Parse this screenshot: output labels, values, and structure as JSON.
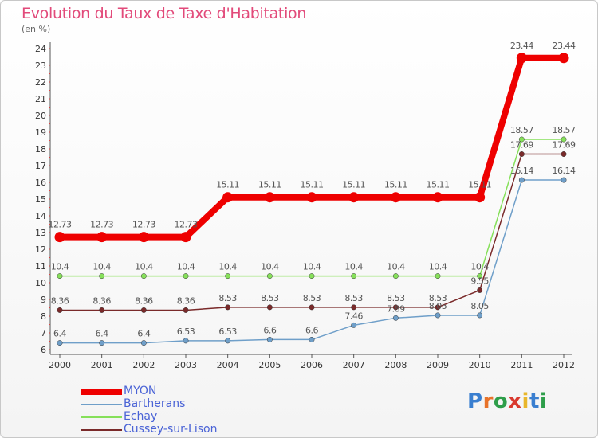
{
  "title": "Evolution du Taux de Taxe d'Habitation",
  "unit_label": "(en %)",
  "logo": {
    "text": "Proxiti",
    "letters": [
      "P",
      "r",
      "o",
      "x",
      "i",
      "t",
      "i"
    ],
    "colors": [
      "#3a7fd0",
      "#e8732a",
      "#2e9e4a",
      "#d93a2f",
      "#e8b62a",
      "#3a7fd0",
      "#2e9e4a"
    ]
  },
  "legend": [
    {
      "label": "MYON",
      "color": "#ee0000"
    },
    {
      "label": "Bartherans",
      "color": "#6f9fc9"
    },
    {
      "label": "Echay",
      "color": "#86e05a"
    },
    {
      "label": "Cussey-sur-Lison",
      "color": "#7a2a2a"
    }
  ],
  "chart_data": {
    "type": "line",
    "title": "Evolution du Taux de Taxe d'Habitation",
    "ylabel": "(en %)",
    "xlabel": "",
    "ylim": [
      6,
      24
    ],
    "grid": false,
    "x": [
      "2000",
      "2001",
      "2002",
      "2003",
      "2004",
      "2005",
      "2006",
      "2007",
      "2008",
      "2009",
      "2010",
      "2011",
      "2012"
    ],
    "yticks": [
      "6",
      "7",
      "8",
      "9",
      "10",
      "11",
      "12",
      "13",
      "14",
      "15",
      "16",
      "17",
      "18",
      "19",
      "20",
      "21",
      "22",
      "23",
      "24"
    ],
    "series": [
      {
        "name": "MYON",
        "color": "#ee0000",
        "values": [
          12.73,
          12.73,
          12.73,
          12.73,
          15.11,
          15.11,
          15.11,
          15.11,
          15.11,
          15.11,
          15.11,
          23.44,
          23.44
        ],
        "labels": [
          "12.73",
          "12.73",
          "12.73",
          "12.73",
          "15.11",
          "15.11",
          "15.11",
          "15.11",
          "15.11",
          "15.11",
          "15.11",
          "23.44",
          "23.44"
        ]
      },
      {
        "name": "Bartherans",
        "color": "#6f9fc9",
        "values": [
          6.4,
          6.4,
          6.4,
          6.53,
          6.53,
          6.6,
          6.6,
          7.46,
          7.89,
          8.05,
          8.05,
          16.14,
          16.14
        ],
        "labels": [
          "6.4",
          "6.4",
          "6.4",
          "6.53",
          "6.53",
          "6.6",
          "6.6",
          "7.46",
          "7.89",
          "8.05",
          "8.05",
          "16.14",
          "16.14"
        ]
      },
      {
        "name": "Echay",
        "color": "#86e05a",
        "values": [
          10.4,
          10.4,
          10.4,
          10.4,
          10.4,
          10.4,
          10.4,
          10.4,
          10.4,
          10.4,
          10.4,
          18.57,
          18.57
        ],
        "labels": [
          "10.4",
          "10.4",
          "10.4",
          "10.4",
          "10.4",
          "10.4",
          "10.4",
          "10.4",
          "10.4",
          "10.4",
          "10.4",
          "18.57",
          "18.57"
        ]
      },
      {
        "name": "Cussey-sur-Lison",
        "color": "#7a2a2a",
        "values": [
          8.36,
          8.36,
          8.36,
          8.36,
          8.53,
          8.53,
          8.53,
          8.53,
          8.53,
          8.53,
          9.55,
          17.69,
          17.69
        ],
        "labels": [
          "8.36",
          "8.36",
          "8.36",
          "8.36",
          "8.53",
          "8.53",
          "8.53",
          "8.53",
          "8.53",
          "8.53",
          "9.55",
          "17.69",
          "17.69"
        ]
      }
    ]
  }
}
